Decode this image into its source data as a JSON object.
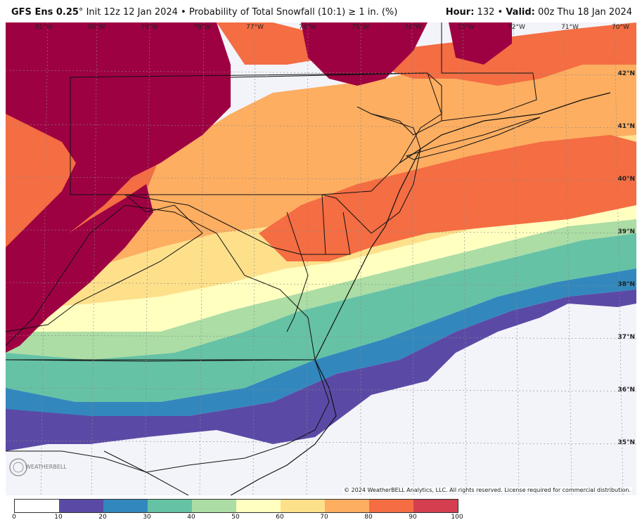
{
  "header": {
    "model": "GFS Ens 0.25",
    "degree": "°",
    "init": "Init 12z 12 Jan 2024",
    "bullet": "•",
    "product": "Probability of Total Snowfall (10:1) ≥ 1 in. (%)",
    "hour_label": "Hour:",
    "hour_value": "132",
    "valid_label": "Valid:",
    "valid_value": "00z Thu 18 Jan 2024"
  },
  "longitude_labels": [
    "81°W",
    "80°W",
    "79°W",
    "78°W",
    "77°W",
    "76°W",
    "75°W",
    "74°W",
    "73°W",
    "72°W",
    "71°W",
    "70°W"
  ],
  "latitude_labels": [
    "42°N",
    "41°N",
    "40°N",
    "39°N",
    "38°N",
    "37°N",
    "36°N",
    "35°N"
  ],
  "copyright": "© 2024 WeatherBELL Analytics, LLC. All rights reserved. License required for commercial distribution.",
  "logo_text": "WEATHERBELL",
  "legend": {
    "ticks": [
      "0",
      "10",
      "20",
      "30",
      "40",
      "50",
      "60",
      "70",
      "80",
      "90",
      "100"
    ],
    "colors": [
      "#ffffff",
      "#5b4aa5",
      "#3288bd",
      "#66c2a5",
      "#abdda4",
      "#ffffbf",
      "#fee08b",
      "#fdae61",
      "#f46d43",
      "#d53e4f",
      "#9e0142"
    ]
  }
}
